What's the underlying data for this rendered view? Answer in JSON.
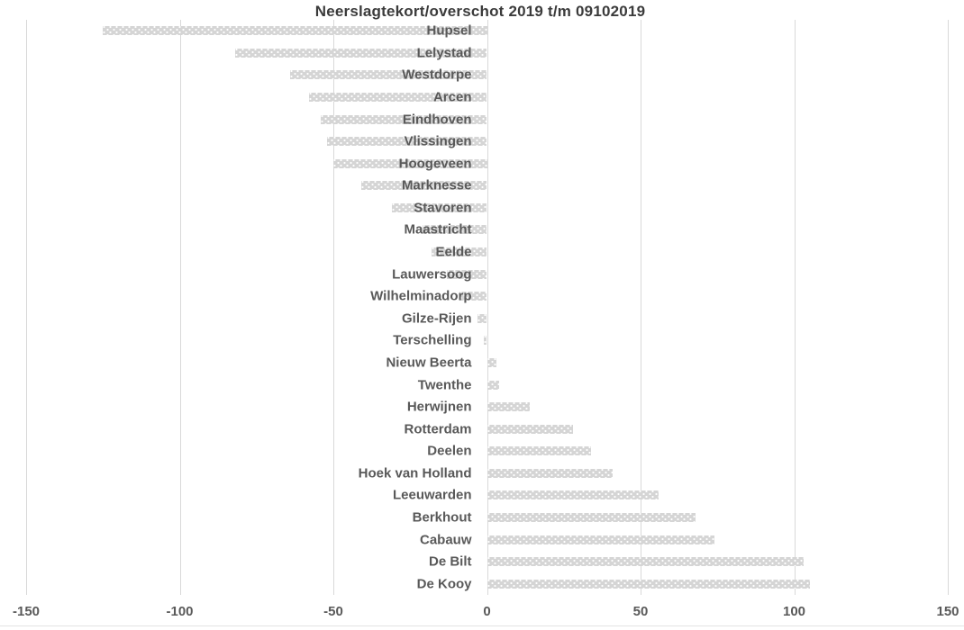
{
  "chart_data": {
    "type": "bar",
    "orientation": "horizontal",
    "title": "Neerslagtekort/overschot 2019 t/m 09102019",
    "categories": [
      "Hupsel",
      "Lelystad",
      "Westdorpe",
      "Arcen",
      "Eindhoven",
      "Vlissingen",
      "Hoogeveen",
      "Marknesse",
      "Stavoren",
      "Maastricht",
      "Eelde",
      "Lauwersoog",
      "Wilhelminadorp",
      "Gilze-Rijen",
      "Terschelling",
      "Nieuw Beerta",
      "Twenthe",
      "Herwijnen",
      "Rotterdam",
      "Deelen",
      "Hoek van Holland",
      "Leeuwarden",
      "Berkhout",
      "Cabauw",
      "De Bilt",
      "De Kooy"
    ],
    "values": [
      -125,
      -82,
      -64,
      -58,
      -54,
      -52,
      -50,
      -41,
      -31,
      -21,
      -18,
      -13,
      -9,
      -3,
      -1,
      3,
      4,
      14,
      28,
      34,
      41,
      56,
      68,
      74,
      103,
      105
    ],
    "xlabel": "",
    "ylabel": "",
    "xlim": [
      -150,
      150
    ],
    "xticks": [
      -150,
      -100,
      -50,
      0,
      50,
      100,
      150
    ],
    "grid": true,
    "legend": false,
    "colors": {
      "bar_fill": "#d5d5d5",
      "bar_dot_pattern": "#ffffff",
      "gridline": "#d9d9d9",
      "tick_label": "#595959",
      "category_label": "#595959",
      "title": "#3b3b3b",
      "background": "#ffffff",
      "bottom_border": "#e2e2e2"
    }
  }
}
